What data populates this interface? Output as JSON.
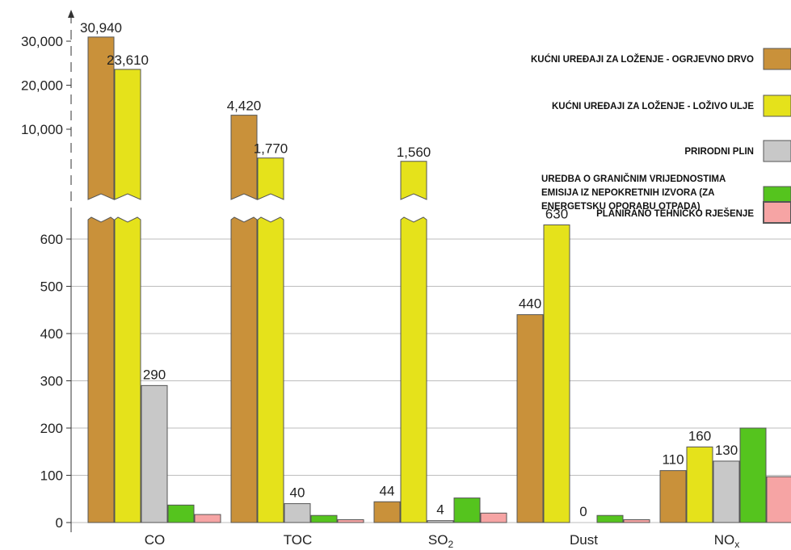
{
  "chart_data": {
    "type": "bar",
    "categories": [
      "CO",
      "TOC",
      "SO2",
      "Dust",
      "NOx"
    ],
    "category_labels": [
      {
        "main": "CO",
        "sub": ""
      },
      {
        "main": "TOC",
        "sub": ""
      },
      {
        "main": "SO",
        "sub": "2"
      },
      {
        "main": "Dust",
        "sub": ""
      },
      {
        "main": "NO",
        "sub": "x"
      }
    ],
    "series": [
      {
        "name": "KUĆNI UREĐAJI ZA LOŽENJE - OGRJEVNO DRVO",
        "color": "#C9913A",
        "values": [
          30940,
          4420,
          44,
          440,
          110
        ],
        "labels": [
          "30,940",
          "4,420",
          "44",
          "440",
          "110"
        ]
      },
      {
        "name": "KUĆNI UREĐAJI ZA LOŽENJE - LOŽIVO ULJE",
        "color": "#E5E21B",
        "values": [
          23610,
          1770,
          1560,
          630,
          160
        ],
        "labels": [
          "23,610",
          "1,770",
          "1,560",
          "630",
          "160"
        ]
      },
      {
        "name": "PRIRODNI PLIN",
        "color": "#C8C8C8",
        "values": [
          290,
          40,
          4,
          0,
          130
        ],
        "labels": [
          "290",
          "40",
          "4",
          "0",
          "130"
        ]
      },
      {
        "name": "UREDBA O GRANIČNIM VRIJEDNOSTIMA EMISIJA IZ NEPOKRETNIH IZVORA (ZA ENERGETSKU OPORABU OTPADA)",
        "color": "#55C41E",
        "legend_lines": [
          "UREDBA O GRANIČNIM VRIJEDNOSTIMA",
          "EMISIJA IZ NEPOKRETNIH IZVORA (ZA",
          "ENERGETSKU OPORABU OTPADA)"
        ],
        "values": [
          37,
          15,
          52,
          15,
          200
        ],
        "labels": [
          "",
          "",
          "",
          "",
          ""
        ]
      },
      {
        "name": "PLANIRANO TEHNIČKO RJEŠENJE",
        "color": "#F6A4A4",
        "values": [
          17,
          6,
          20,
          6,
          97
        ],
        "labels": [
          "",
          "",
          "",
          "",
          ""
        ]
      }
    ],
    "y_ticks_lower": [
      0,
      100,
      200,
      300,
      400,
      500,
      600
    ],
    "y_tick_labels_lower": [
      "0",
      "100",
      "200",
      "300",
      "400",
      "500",
      "600"
    ],
    "y_ticks_upper": [
      10000,
      20000,
      30000
    ],
    "y_tick_labels_upper": [
      "10,000",
      "20,000",
      "30,000"
    ],
    "ylim_lower": [
      0,
      650
    ],
    "ylim_upper": [
      10000,
      30940
    ],
    "axis_break": true,
    "grid": true,
    "legend_position": "right",
    "title": "",
    "xlabel": "",
    "ylabel": ""
  }
}
